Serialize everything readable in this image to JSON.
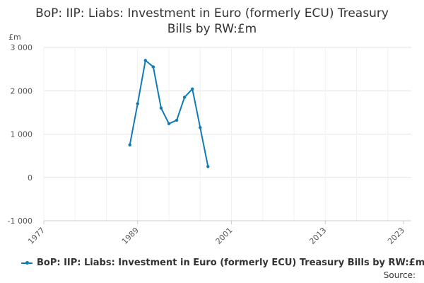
{
  "chart_data": {
    "type": "line",
    "title_lines": [
      "BoP: IIP: Liabs: Investment in Euro (formerly ECU) Treasury",
      "Bills by RW:£m"
    ],
    "ylabel": "£m",
    "ylim": [
      -1000,
      3000
    ],
    "yticks": [
      -1000,
      0,
      1000,
      2000,
      3000
    ],
    "ytick_labels": [
      "-1 000",
      "0",
      "1 000",
      "2 000",
      "3 000"
    ],
    "xlim": [
      1977,
      2024
    ],
    "xticks": [
      1977,
      1989,
      2001,
      2013,
      2023
    ],
    "xtick_labels": [
      "1977",
      "1989",
      "2001",
      "2013",
      "2023"
    ],
    "grid": true,
    "legend_position": "bottom",
    "series": [
      {
        "name": "BoP: IIP: Liabs: Investment in Euro (formerly ECU) Treasury Bills by RW:£m",
        "color": "#0f7bb5",
        "x": [
          1988,
          1989,
          1990,
          1991,
          1992,
          1993,
          1994,
          1995,
          1996,
          1997,
          1998
        ],
        "y": [
          750,
          1700,
          2700,
          2550,
          1600,
          1240,
          1320,
          1850,
          2040,
          1150,
          250
        ]
      }
    ],
    "source_label": "Source:"
  }
}
